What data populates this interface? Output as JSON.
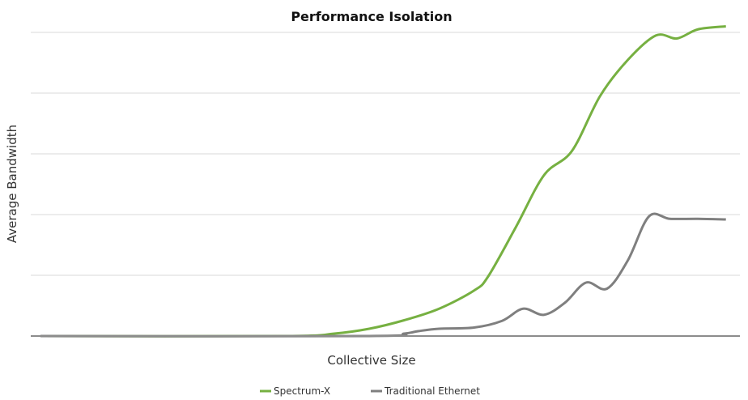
{
  "chart_data": {
    "type": "line",
    "title": "Performance Isolation",
    "xlabel": "Collective Size",
    "ylabel": "Average Bandwidth",
    "xlim": [
      0,
      100
    ],
    "ylim": [
      0,
      5
    ],
    "grid": true,
    "legend_position": "bottom",
    "series": [
      {
        "name": "Spectrum-X",
        "color": "#76b041",
        "x": [
          0,
          35,
          42,
          47,
          52,
          57,
          62,
          64,
          68,
          72,
          76,
          80,
          84,
          88,
          91,
          94,
          98
        ],
        "y": [
          0,
          0,
          0.04,
          0.12,
          0.26,
          0.45,
          0.75,
          0.98,
          1.8,
          2.65,
          3.05,
          3.95,
          4.55,
          4.95,
          4.9,
          5.05,
          5.1
        ]
      },
      {
        "name": "Traditional Ethernet",
        "color": "#7f7f7f",
        "x": [
          0,
          47,
          52,
          54,
          57,
          62,
          66,
          69,
          72,
          75,
          78,
          81,
          84,
          87,
          90,
          94,
          98
        ],
        "y": [
          0,
          0,
          0.04,
          0.08,
          0.12,
          0.14,
          0.25,
          0.45,
          0.35,
          0.55,
          0.88,
          0.78,
          1.25,
          1.97,
          1.93,
          1.93,
          1.92
        ]
      }
    ]
  }
}
